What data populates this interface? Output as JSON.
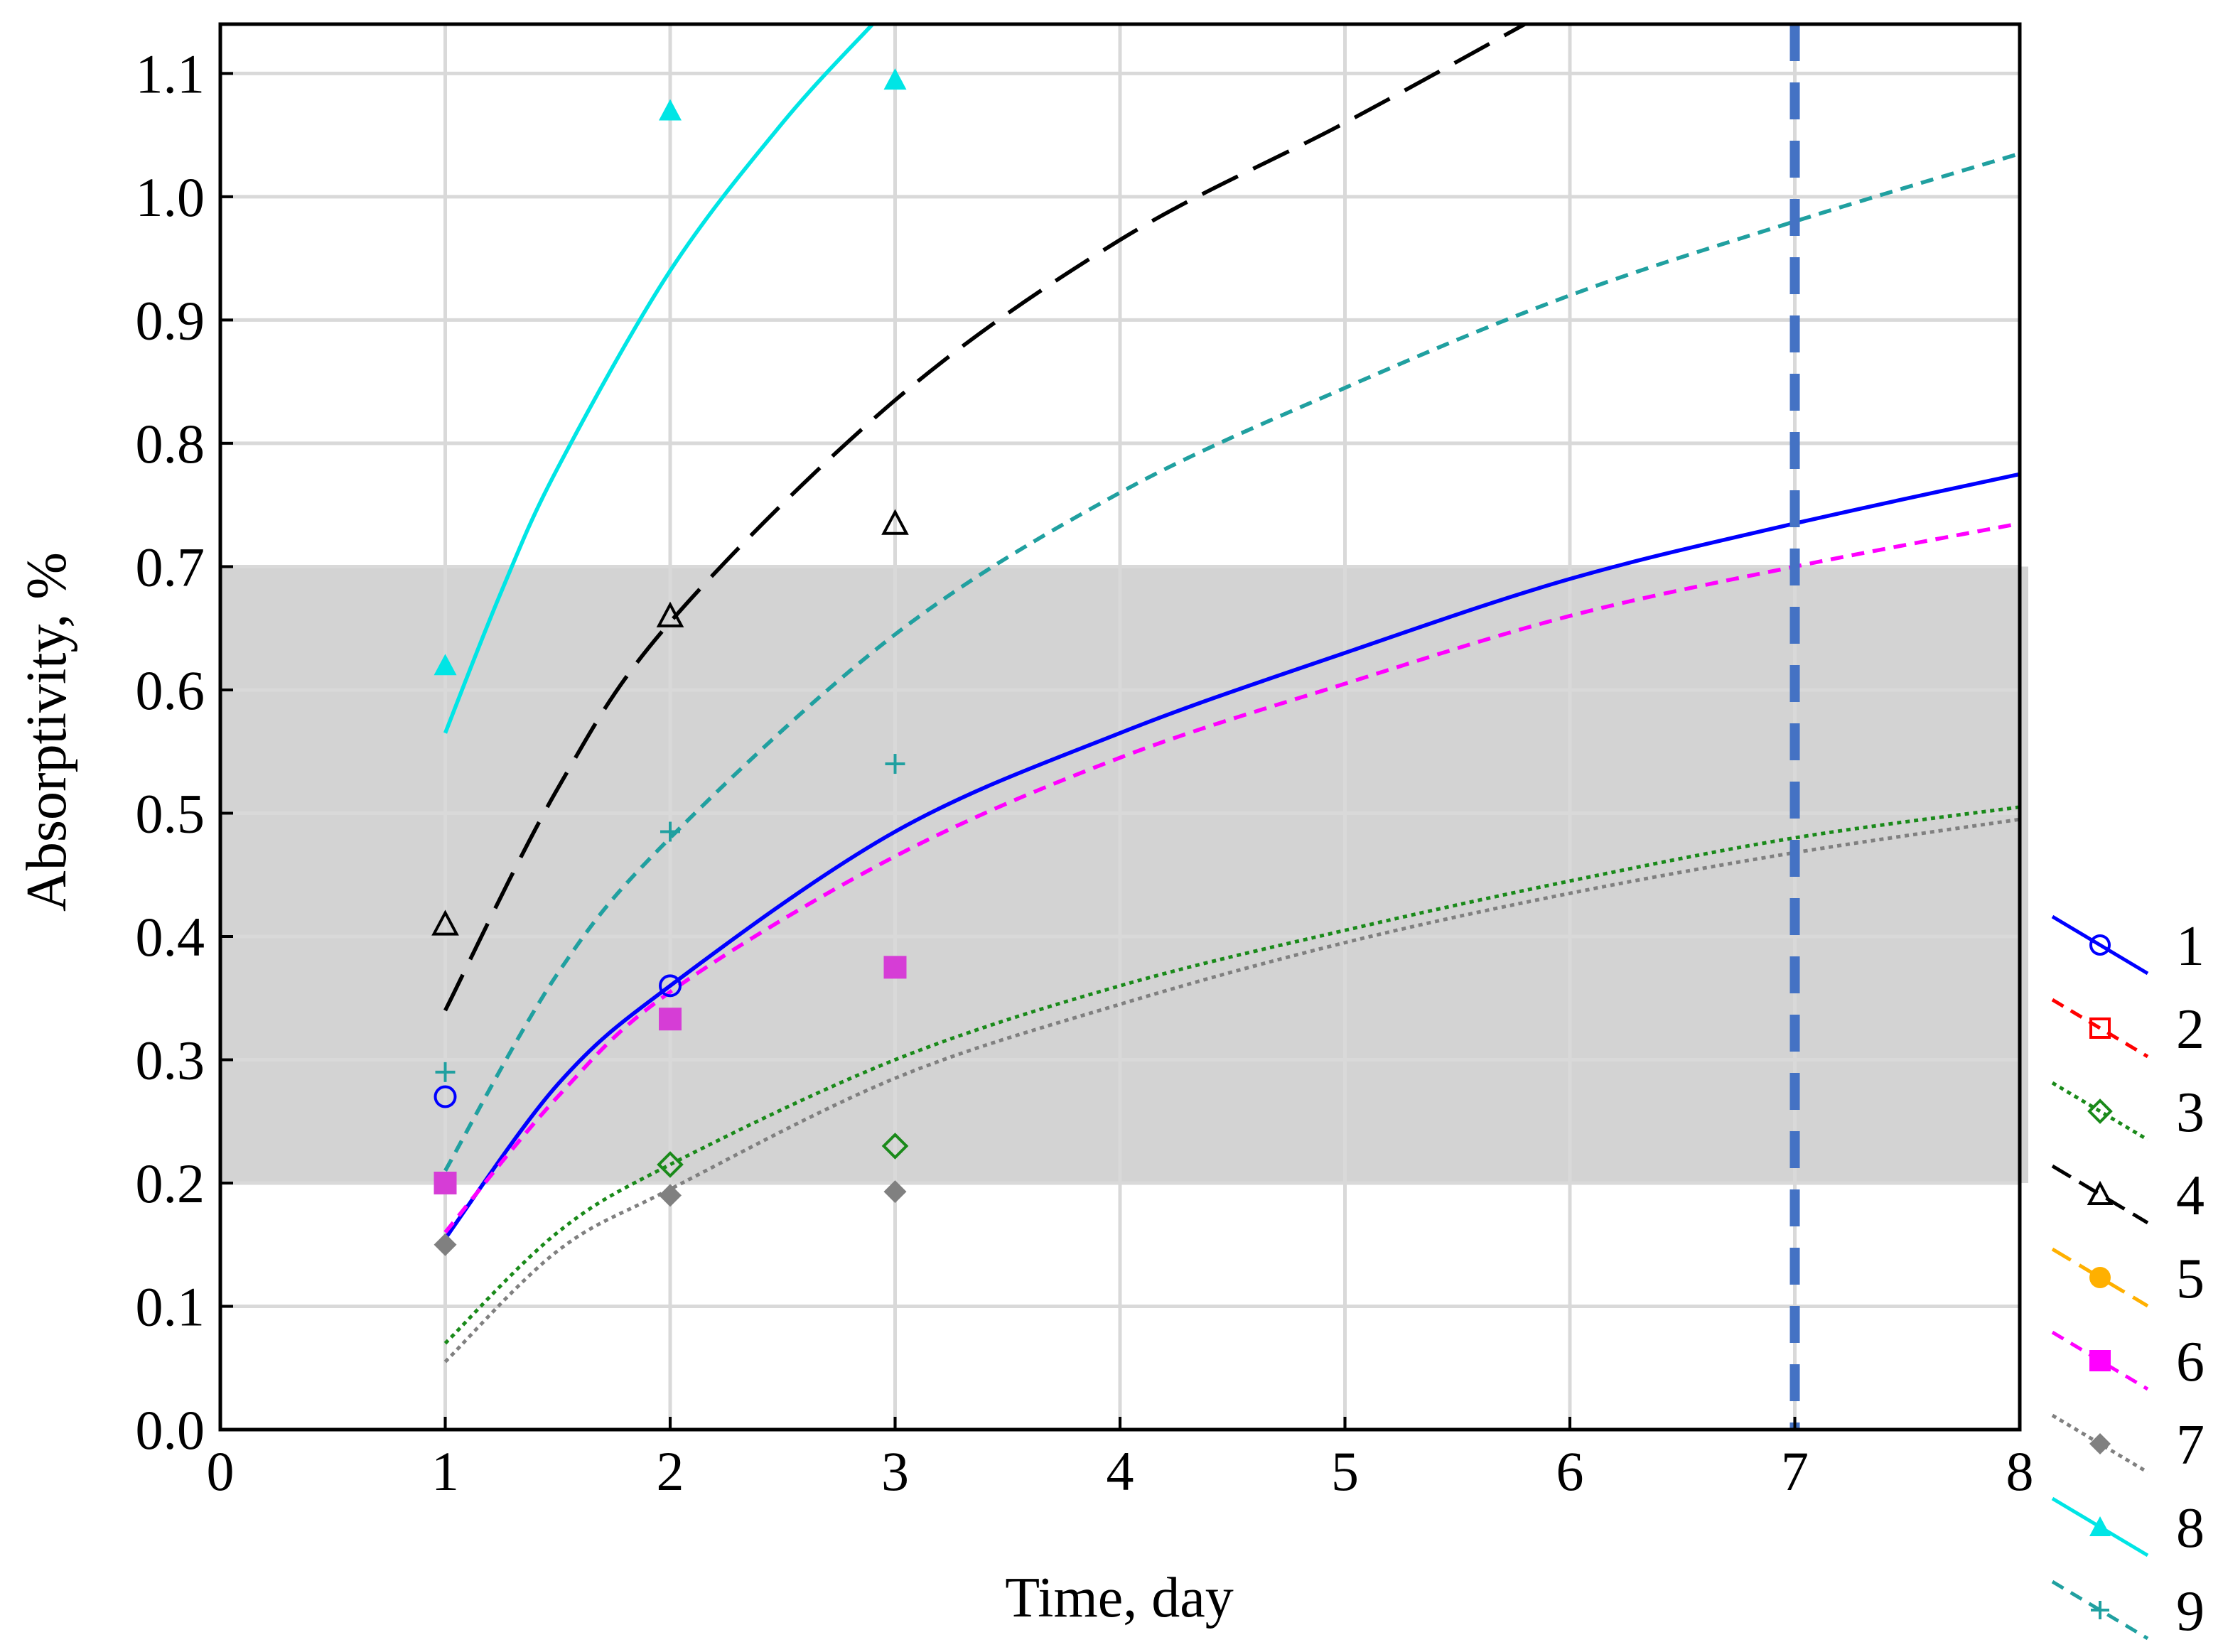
{
  "chart_data": {
    "type": "line",
    "xlabel": "Time, day",
    "ylabel": "Absorptivity, %",
    "xlim": [
      0,
      8
    ],
    "ylim": [
      0,
      1.14
    ],
    "x_ticks": [
      "0",
      "1",
      "2",
      "3",
      "4",
      "5",
      "6",
      "7",
      "8"
    ],
    "y_ticks": [
      "0.0",
      "0.1",
      "0.2",
      "0.3",
      "0.4",
      "0.5",
      "0.6",
      "0.7",
      "0.8",
      "0.9",
      "1.0",
      "1.1"
    ],
    "grid": true,
    "shaded_band": {
      "y_from": 0.2,
      "y_to": 0.7,
      "color": "#d3d3d3"
    },
    "reference_line": {
      "x": 7,
      "color": "#4472c4",
      "style": "dashed"
    },
    "legend_position": "right-bottom-outside",
    "series": [
      {
        "name": "1",
        "color": "#0000ff",
        "marker": "circle-open",
        "line": "solid",
        "points": [
          [
            1,
            0.27
          ],
          [
            2,
            0.36
          ]
        ],
        "fit": [
          [
            1,
            0.155
          ],
          [
            1.5,
            0.28
          ],
          [
            2,
            0.36
          ],
          [
            3,
            0.485
          ],
          [
            4,
            0.565
          ],
          [
            5,
            0.63
          ],
          [
            6,
            0.69
          ],
          [
            7,
            0.735
          ],
          [
            8,
            0.775
          ]
        ]
      },
      {
        "name": "2",
        "color": "#ff0000",
        "marker": "square-open",
        "line": "dashed",
        "points": [],
        "fit": []
      },
      {
        "name": "3",
        "color": "#1a8a1a",
        "marker": "diamond-open",
        "line": "dotted",
        "points": [
          [
            2,
            0.215
          ],
          [
            3,
            0.23
          ]
        ],
        "fit": [
          [
            1,
            0.07
          ],
          [
            1.5,
            0.16
          ],
          [
            2,
            0.215
          ],
          [
            3,
            0.3
          ],
          [
            4,
            0.36
          ],
          [
            5,
            0.405
          ],
          [
            6,
            0.445
          ],
          [
            7,
            0.48
          ],
          [
            8,
            0.505
          ]
        ]
      },
      {
        "name": "4",
        "color": "#000000",
        "marker": "triangle-open",
        "line": "longdash",
        "points": [
          [
            1,
            0.41
          ],
          [
            2,
            0.66
          ],
          [
            3,
            0.735
          ]
        ],
        "fit": [
          [
            1,
            0.34
          ],
          [
            1.5,
            0.52
          ],
          [
            2,
            0.655
          ],
          [
            3,
            0.835
          ],
          [
            4,
            0.965
          ],
          [
            5,
            1.06
          ],
          [
            5.8,
            1.14
          ]
        ]
      },
      {
        "name": "5",
        "color": "#ffb000",
        "marker": "circle-filled",
        "line": "longdash",
        "points": [],
        "fit": []
      },
      {
        "name": "6",
        "color": "#ff00ff",
        "marker": "square-filled",
        "line": "dashed",
        "points": [
          [
            1,
            0.2
          ],
          [
            2,
            0.333
          ],
          [
            3,
            0.375
          ]
        ],
        "fit": [
          [
            1,
            0.16
          ],
          [
            1.5,
            0.27
          ],
          [
            2,
            0.355
          ],
          [
            3,
            0.465
          ],
          [
            4,
            0.545
          ],
          [
            5,
            0.605
          ],
          [
            6,
            0.66
          ],
          [
            7,
            0.7
          ],
          [
            8,
            0.735
          ]
        ]
      },
      {
        "name": "7",
        "color": "#808080",
        "marker": "diamond-filled",
        "line": "dotted",
        "points": [
          [
            1,
            0.15
          ],
          [
            2,
            0.19
          ],
          [
            3,
            0.193
          ]
        ],
        "fit": [
          [
            1,
            0.055
          ],
          [
            1.5,
            0.145
          ],
          [
            2,
            0.195
          ],
          [
            3,
            0.285
          ],
          [
            4,
            0.345
          ],
          [
            5,
            0.395
          ],
          [
            6,
            0.435
          ],
          [
            7,
            0.468
          ],
          [
            8,
            0.495
          ]
        ]
      },
      {
        "name": "8",
        "color": "#00e5e5",
        "marker": "triangle-filled",
        "line": "solid",
        "points": [
          [
            1,
            0.62
          ],
          [
            2,
            1.07
          ],
          [
            3,
            1.095
          ]
        ],
        "fit": [
          [
            1,
            0.565
          ],
          [
            1.25,
            0.68
          ],
          [
            1.5,
            0.78
          ],
          [
            2,
            0.94
          ],
          [
            2.5,
            1.06
          ],
          [
            2.9,
            1.14
          ]
        ]
      },
      {
        "name": "9",
        "color": "#20a0a0",
        "marker": "plus",
        "line": "dashed",
        "points": [
          [
            1,
            0.29
          ],
          [
            2,
            0.485
          ],
          [
            3,
            0.54
          ]
        ],
        "fit": [
          [
            1,
            0.21
          ],
          [
            1.5,
            0.37
          ],
          [
            2,
            0.48
          ],
          [
            3,
            0.645
          ],
          [
            4,
            0.76
          ],
          [
            5,
            0.845
          ],
          [
            6,
            0.92
          ],
          [
            7,
            0.98
          ],
          [
            8,
            1.035
          ]
        ]
      }
    ]
  }
}
